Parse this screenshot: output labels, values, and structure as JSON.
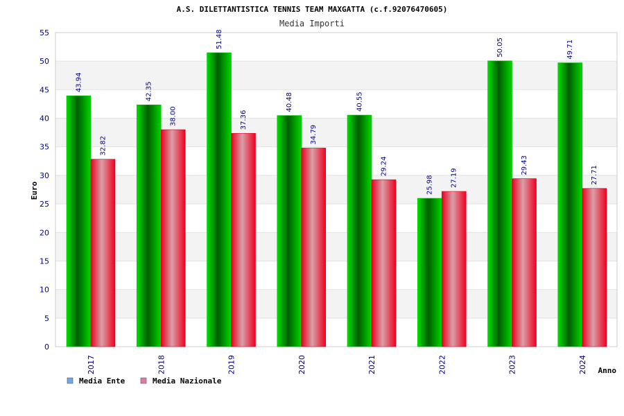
{
  "chart_data": {
    "type": "bar",
    "title": "A.S. DILETTANTISTICA TENNIS TEAM MAXGATTA (c.f.92076470605)",
    "subtitle": "Media Importi",
    "xlabel": "Anno",
    "ylabel": "Euro",
    "categories": [
      "2017",
      "2018",
      "2019",
      "2020",
      "2021",
      "2022",
      "2023",
      "2024"
    ],
    "series": [
      {
        "name": "Media Ente",
        "values": [
          43.94,
          42.35,
          51.48,
          40.48,
          40.55,
          25.98,
          50.05,
          49.71
        ],
        "labels": [
          "43.94",
          "42.35",
          "51.48",
          "40.48",
          "40.55",
          "25.98",
          "50.05",
          "49.71"
        ],
        "color": "#00a000",
        "legend_color": "#6fa8e6"
      },
      {
        "name": "Media Nazionale",
        "values": [
          32.82,
          38.0,
          37.36,
          34.79,
          29.24,
          27.19,
          29.43,
          27.71
        ],
        "labels": [
          "32.82",
          "38.00",
          "37.36",
          "34.79",
          "29.24",
          "27.19",
          "29.43",
          "27.71"
        ],
        "color": "#e00020",
        "legend_color": "#e07aa8"
      }
    ],
    "ylim": [
      0,
      55
    ],
    "yticks": [
      "0",
      "5",
      "10",
      "15",
      "20",
      "25",
      "30",
      "35",
      "40",
      "45",
      "50",
      "55"
    ],
    "grid": true,
    "legend": "bottom-left"
  }
}
